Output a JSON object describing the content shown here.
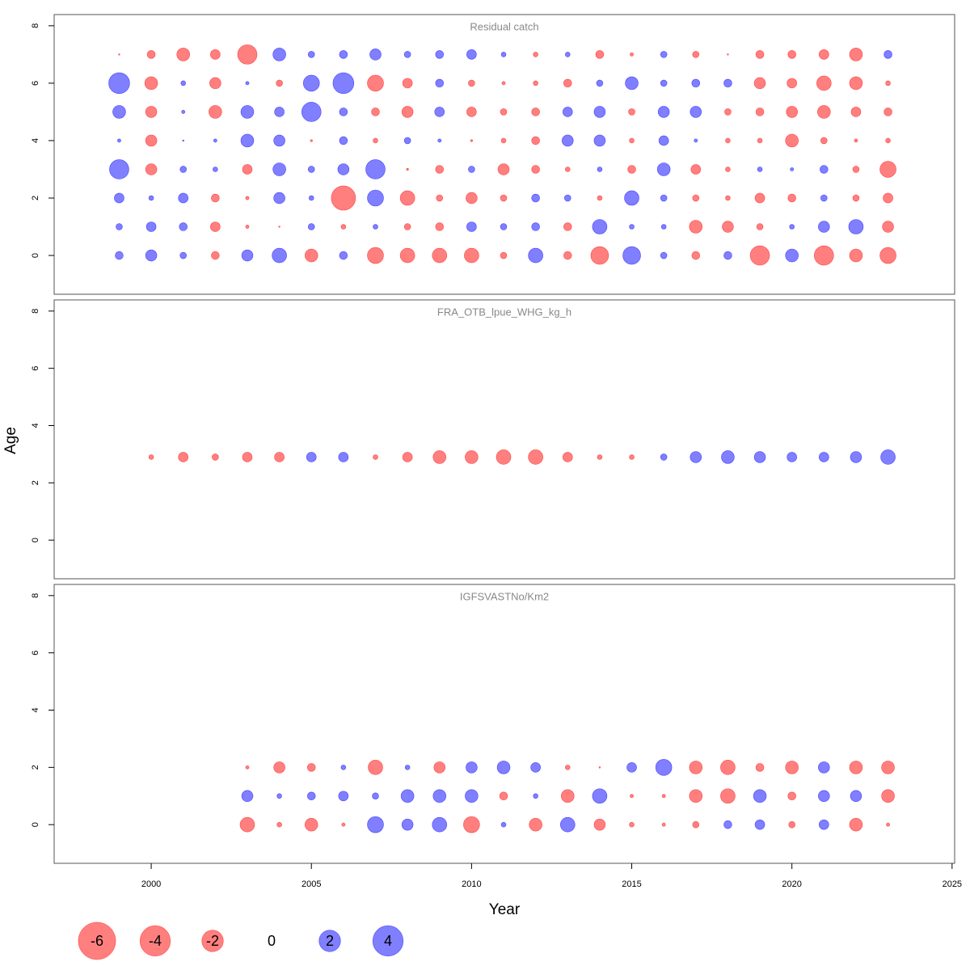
{
  "style": {
    "pos_color": "#0000ff",
    "neg_color": "#ff0000",
    "opacity": 0.5
  },
  "axes": {
    "xlabel": "Year",
    "ylabel": "Age"
  },
  "legend": {
    "values": [
      -6,
      -4,
      -2,
      0,
      2,
      4
    ]
  },
  "chart_data": [
    {
      "type": "bubble",
      "title": "Residual catch",
      "x": [
        1999,
        2000,
        2001,
        2002,
        2003,
        2004,
        2005,
        2006,
        2007,
        2008,
        2009,
        2010,
        2011,
        2012,
        2013,
        2014,
        2015,
        2016,
        2017,
        2018,
        2019,
        2020,
        2021,
        2022,
        2023
      ],
      "y": [
        0,
        1,
        2,
        3,
        4,
        5,
        6,
        7
      ],
      "values": [
        [
          0.28,
          0.55,
          0.18,
          -0.28,
          0.55,
          0.92,
          -0.72,
          0.28,
          -1.13,
          -0.92,
          -0.92,
          -0.92,
          -0.18,
          0.92,
          -0.28,
          -1.37,
          1.37,
          0.18,
          -0.28,
          0.28,
          -1.63,
          0.72,
          -1.63,
          -0.72,
          -1.13
        ],
        [
          0.18,
          0.41,
          0.28,
          -0.41,
          -0.05,
          -0.01,
          0.18,
          -0.1,
          0.1,
          -0.18,
          -0.28,
          0.41,
          0.18,
          0.28,
          -0.28,
          0.92,
          0.1,
          0.1,
          -0.72,
          -0.55,
          -0.18,
          0.1,
          0.55,
          0.92,
          -0.55
        ],
        [
          0.41,
          0.1,
          0.41,
          -0.28,
          -0.05,
          0.55,
          0.1,
          -2.55,
          1.13,
          -0.92,
          -0.18,
          -0.55,
          -0.18,
          0.28,
          0.18,
          -0.1,
          0.92,
          0.18,
          -0.18,
          -0.1,
          -0.41,
          -0.28,
          0.18,
          -0.18,
          -0.41
        ],
        [
          1.63,
          -0.55,
          0.18,
          0.1,
          -0.41,
          0.72,
          0.18,
          0.55,
          1.63,
          -0.02,
          -0.28,
          0.18,
          -0.55,
          -0.28,
          -0.1,
          0.1,
          -0.28,
          0.72,
          -0.41,
          -0.1,
          0.1,
          0.05,
          0.28,
          -0.18,
          -1.13
        ],
        [
          0.05,
          -0.55,
          0.01,
          0.05,
          0.72,
          0.55,
          -0.02,
          0.28,
          -0.1,
          0.18,
          0.05,
          -0.02,
          -0.1,
          -0.28,
          0.55,
          0.55,
          -0.1,
          0.41,
          0.05,
          -0.1,
          -0.1,
          -0.72,
          -0.18,
          -0.05,
          -0.1
        ],
        [
          0.72,
          -0.55,
          0.05,
          -0.72,
          0.72,
          0.41,
          1.63,
          0.28,
          -0.28,
          -0.55,
          0.41,
          -0.41,
          -0.18,
          -0.28,
          0.41,
          0.55,
          -0.18,
          0.55,
          0.55,
          -0.18,
          -0.28,
          -0.55,
          -0.72,
          -0.41,
          -0.28
        ],
        [
          1.9,
          -0.72,
          0.1,
          -0.55,
          0.05,
          -0.18,
          1.13,
          1.9,
          -1.13,
          -0.41,
          0.28,
          -0.18,
          -0.05,
          -0.1,
          -0.28,
          0.18,
          0.72,
          0.18,
          0.28,
          0.28,
          -0.55,
          -0.41,
          -0.92,
          -0.72,
          -0.1
        ],
        [
          -0.01,
          -0.28,
          -0.72,
          -0.41,
          -1.63,
          0.72,
          0.18,
          0.28,
          0.55,
          0.18,
          0.28,
          0.41,
          0.1,
          -0.1,
          0.1,
          -0.28,
          -0.05,
          0.18,
          -0.18,
          -0.01,
          -0.28,
          -0.28,
          -0.41,
          -0.72,
          0.28
        ]
      ],
      "xlim": [
        1996.97,
        2025.08
      ],
      "ylim": [
        -1.35,
        8.39
      ],
      "yticks": [
        0,
        2,
        4,
        6,
        8
      ]
    },
    {
      "type": "bubble",
      "title": "FRA_OTB_lpue_WHG_kg_h",
      "x": [
        2000,
        2001,
        2002,
        2003,
        2004,
        2005,
        2006,
        2007,
        2008,
        2009,
        2010,
        2011,
        2012,
        2013,
        2014,
        2015,
        2016,
        2017,
        2018,
        2019,
        2020,
        2021,
        2022,
        2023
      ],
      "y": [
        2.9
      ],
      "values": [
        [
          -0.1,
          -0.41,
          -0.18,
          -0.41,
          -0.41,
          0.41,
          0.41,
          -0.1,
          -0.41,
          -0.72,
          -0.72,
          -0.92,
          -0.92,
          -0.41,
          -0.1,
          -0.1,
          0.18,
          0.55,
          0.72,
          0.55,
          0.41,
          0.41,
          0.55,
          0.92
        ]
      ],
      "xlim": [
        1996.97,
        2025.08
      ],
      "ylim": [
        -1.35,
        8.39
      ],
      "yticks": [
        0,
        2,
        4,
        6,
        8
      ]
    },
    {
      "type": "bubble",
      "title": "IGFSVASTNo/Km2",
      "x": [
        2003,
        2004,
        2005,
        2006,
        2007,
        2008,
        2009,
        2010,
        2011,
        2012,
        2013,
        2014,
        2015,
        2016,
        2017,
        2018,
        2019,
        2020,
        2021,
        2022,
        2023
      ],
      "y": [
        0,
        1,
        2
      ],
      "values": [
        [
          -0.92,
          -0.1,
          -0.72,
          -0.05,
          1.13,
          0.55,
          0.92,
          -1.13,
          0.1,
          -0.72,
          0.92,
          -0.55,
          -0.1,
          -0.05,
          -0.18,
          0.28,
          0.41,
          -0.18,
          0.41,
          -0.72,
          -0.05
        ],
        [
          0.55,
          0.1,
          0.28,
          0.41,
          0.18,
          0.72,
          0.72,
          0.72,
          -0.28,
          0.1,
          -0.72,
          0.92,
          -0.05,
          -0.05,
          -0.72,
          -0.92,
          0.72,
          -0.28,
          0.55,
          0.55,
          -0.72
        ],
        [
          -0.05,
          -0.55,
          -0.28,
          0.1,
          -0.92,
          0.1,
          -0.55,
          0.55,
          0.72,
          0.41,
          -0.1,
          -0.01,
          0.41,
          1.13,
          -0.72,
          -0.92,
          -0.28,
          -0.72,
          0.55,
          -0.72,
          -0.72
        ]
      ],
      "xlim": [
        1996.97,
        2025.08
      ],
      "ylim": [
        -1.35,
        8.39
      ],
      "yticks": [
        0,
        2,
        4,
        6,
        8
      ],
      "xticks": [
        2000,
        2005,
        2010,
        2015,
        2020,
        2025
      ]
    }
  ]
}
